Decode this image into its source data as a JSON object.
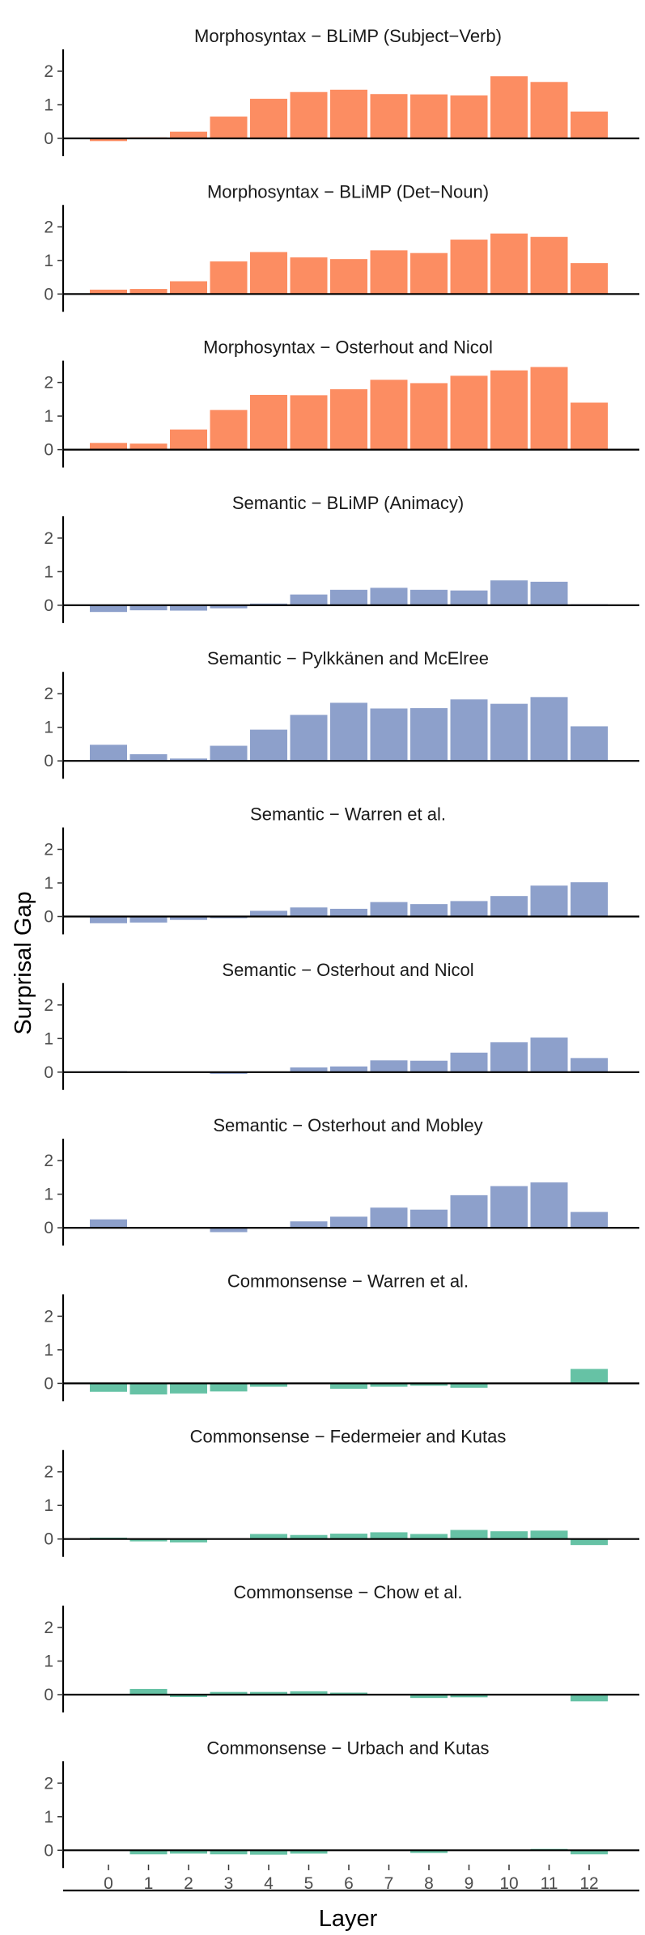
{
  "figure": {
    "ylabel": "Surprisal Gap",
    "xlabel": "Layer",
    "colors": {
      "Morphosyntax": "#FC8D62",
      "Semantic": "#8DA0CB",
      "Commonsense": "#66C2A5"
    }
  },
  "chart_data": [
    {
      "type": "bar",
      "category": "Morphosyntax",
      "dataset": "BLiMP (Subject−Verb)",
      "categories": [
        "0",
        "1",
        "2",
        "3",
        "4",
        "5",
        "6",
        "7",
        "8",
        "9",
        "10",
        "11",
        "12"
      ],
      "values": [
        -0.08,
        0.03,
        0.2,
        0.65,
        1.18,
        1.38,
        1.45,
        1.32,
        1.31,
        1.28,
        1.85,
        1.68,
        0.8
      ],
      "yticks": [
        0,
        1,
        2
      ],
      "ylim": [
        -0.5,
        2.6
      ]
    },
    {
      "type": "bar",
      "category": "Morphosyntax",
      "dataset": "BLiMP (Det−Noun)",
      "categories": [
        "0",
        "1",
        "2",
        "3",
        "4",
        "5",
        "6",
        "7",
        "8",
        "9",
        "10",
        "11",
        "12"
      ],
      "values": [
        0.13,
        0.15,
        0.38,
        0.97,
        1.25,
        1.09,
        1.04,
        1.3,
        1.22,
        1.62,
        1.8,
        1.7,
        0.92
      ],
      "yticks": [
        0,
        1,
        2
      ],
      "ylim": [
        -0.5,
        2.6
      ]
    },
    {
      "type": "bar",
      "category": "Morphosyntax",
      "dataset": "Osterhout and Nicol",
      "categories": [
        "0",
        "1",
        "2",
        "3",
        "4",
        "5",
        "6",
        "7",
        "8",
        "9",
        "10",
        "11",
        "12"
      ],
      "values": [
        0.2,
        0.18,
        0.6,
        1.18,
        1.63,
        1.62,
        1.8,
        2.08,
        1.98,
        2.2,
        2.36,
        2.46,
        1.4
      ],
      "yticks": [
        0,
        1,
        2
      ],
      "ylim": [
        -0.5,
        2.6
      ]
    },
    {
      "type": "bar",
      "category": "Semantic",
      "dataset": "BLiMP (Animacy)",
      "categories": [
        "0",
        "1",
        "2",
        "3",
        "4",
        "5",
        "6",
        "7",
        "8",
        "9",
        "10",
        "11",
        "12"
      ],
      "values": [
        -0.2,
        -0.15,
        -0.16,
        -0.09,
        0.05,
        0.32,
        0.46,
        0.52,
        0.46,
        0.44,
        0.74,
        0.7,
        0.03
      ],
      "yticks": [
        0,
        1,
        2
      ],
      "ylim": [
        -0.5,
        2.6
      ]
    },
    {
      "type": "bar",
      "category": "Semantic",
      "dataset": "Pylkkänen and McElree",
      "categories": [
        "0",
        "1",
        "2",
        "3",
        "4",
        "5",
        "6",
        "7",
        "8",
        "9",
        "10",
        "11",
        "12"
      ],
      "values": [
        0.48,
        0.2,
        0.07,
        0.45,
        0.93,
        1.37,
        1.73,
        1.56,
        1.57,
        1.83,
        1.7,
        1.9,
        1.03
      ],
      "yticks": [
        0,
        1,
        2
      ],
      "ylim": [
        -0.5,
        2.6
      ]
    },
    {
      "type": "bar",
      "category": "Semantic",
      "dataset": "Warren et al.",
      "categories": [
        "0",
        "1",
        "2",
        "3",
        "4",
        "5",
        "6",
        "7",
        "8",
        "9",
        "10",
        "11",
        "12"
      ],
      "values": [
        -0.2,
        -0.18,
        -0.1,
        -0.05,
        0.17,
        0.27,
        0.23,
        0.43,
        0.37,
        0.46,
        0.61,
        0.92,
        1.02
      ],
      "yticks": [
        0,
        1,
        2
      ],
      "ylim": [
        -0.5,
        2.6
      ]
    },
    {
      "type": "bar",
      "category": "Semantic",
      "dataset": "Osterhout and Nicol",
      "categories": [
        "0",
        "1",
        "2",
        "3",
        "4",
        "5",
        "6",
        "7",
        "8",
        "9",
        "10",
        "11",
        "12"
      ],
      "values": [
        0.03,
        0.0,
        0.0,
        -0.05,
        0.02,
        0.14,
        0.17,
        0.35,
        0.34,
        0.58,
        0.89,
        1.03,
        0.42
      ],
      "yticks": [
        0,
        1,
        2
      ],
      "ylim": [
        -0.5,
        2.6
      ]
    },
    {
      "type": "bar",
      "category": "Semantic",
      "dataset": "Osterhout and Mobley",
      "categories": [
        "0",
        "1",
        "2",
        "3",
        "4",
        "5",
        "6",
        "7",
        "8",
        "9",
        "10",
        "11",
        "12"
      ],
      "values": [
        0.25,
        0.02,
        0.0,
        -0.13,
        0.0,
        0.19,
        0.33,
        0.6,
        0.54,
        0.97,
        1.24,
        1.35,
        0.47
      ],
      "yticks": [
        0,
        1,
        2
      ],
      "ylim": [
        -0.5,
        2.6
      ]
    },
    {
      "type": "bar",
      "category": "Commonsense",
      "dataset": "Warren et al.",
      "categories": [
        "0",
        "1",
        "2",
        "3",
        "4",
        "5",
        "6",
        "7",
        "8",
        "9",
        "10",
        "11",
        "12"
      ],
      "values": [
        -0.25,
        -0.33,
        -0.3,
        -0.24,
        -0.1,
        0.0,
        -0.16,
        -0.1,
        -0.07,
        -0.13,
        0.0,
        0.02,
        0.43
      ],
      "yticks": [
        0,
        1,
        2
      ],
      "ylim": [
        -0.5,
        2.6
      ]
    },
    {
      "type": "bar",
      "category": "Commonsense",
      "dataset": "Federmeier and Kutas",
      "categories": [
        "0",
        "1",
        "2",
        "3",
        "4",
        "5",
        "6",
        "7",
        "8",
        "9",
        "10",
        "11",
        "12"
      ],
      "values": [
        0.04,
        -0.07,
        -0.1,
        0.0,
        0.15,
        0.12,
        0.16,
        0.2,
        0.15,
        0.27,
        0.23,
        0.25,
        -0.18
      ],
      "yticks": [
        0,
        1,
        2
      ],
      "ylim": [
        -0.5,
        2.6
      ]
    },
    {
      "type": "bar",
      "category": "Commonsense",
      "dataset": "Chow et al.",
      "categories": [
        "0",
        "1",
        "2",
        "3",
        "4",
        "5",
        "6",
        "7",
        "8",
        "9",
        "10",
        "11",
        "12"
      ],
      "values": [
        0.0,
        0.17,
        -0.07,
        0.08,
        0.08,
        0.1,
        0.06,
        0.0,
        -0.1,
        -0.08,
        0.0,
        0.0,
        -0.2
      ],
      "yticks": [
        0,
        1,
        2
      ],
      "ylim": [
        -0.5,
        2.6
      ]
    },
    {
      "type": "bar",
      "category": "Commonsense",
      "dataset": "Urbach and Kutas",
      "categories": [
        "0",
        "1",
        "2",
        "3",
        "4",
        "5",
        "6",
        "7",
        "8",
        "9",
        "10",
        "11",
        "12"
      ],
      "values": [
        0.0,
        -0.12,
        -0.1,
        -0.12,
        -0.13,
        -0.1,
        0.0,
        0.0,
        -0.08,
        0.0,
        0.0,
        0.04,
        -0.12
      ],
      "yticks": [
        0,
        1,
        2
      ],
      "ylim": [
        -0.5,
        2.6
      ]
    }
  ]
}
